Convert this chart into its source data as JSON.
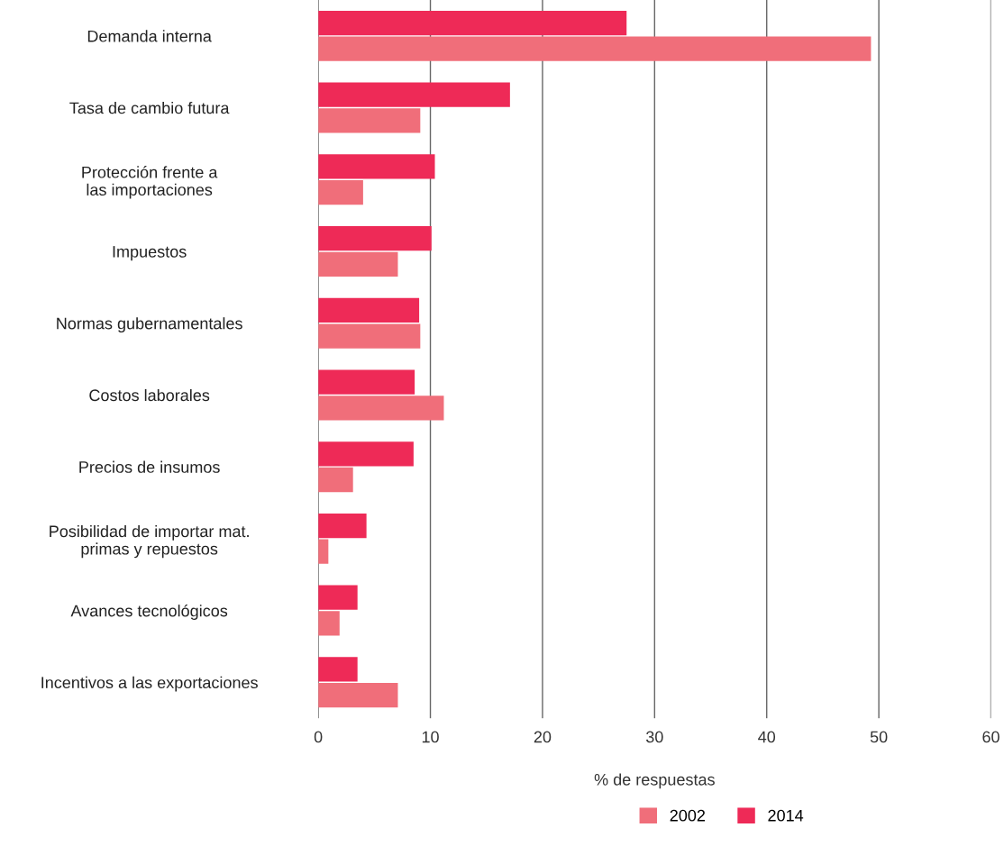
{
  "chart_data": {
    "type": "bar",
    "orientation": "horizontal",
    "xlabel": "% de respuestas",
    "categories": [
      "Demanda interna",
      "Tasa de cambio futura",
      "Protección frente a\nlas importaciones",
      "Impuestos",
      "Normas gubernamentales",
      "Costos laborales",
      "Precios de insumos",
      "Posibilidad de importar mat.\nprimas y repuestos",
      "Avances tecnológicos",
      "Incentivos a las exportaciones"
    ],
    "series": [
      {
        "name": "2002",
        "color": "#f06e7a",
        "values": [
          49.3,
          9.1,
          4.0,
          7.1,
          9.1,
          11.2,
          3.1,
          0.9,
          1.9,
          7.1
        ]
      },
      {
        "name": "2014",
        "color": "#ee2a57",
        "values": [
          27.5,
          17.1,
          10.4,
          10.1,
          9.0,
          8.6,
          8.5,
          4.3,
          3.5,
          3.5
        ]
      }
    ],
    "xlim": [
      0,
      60
    ],
    "xticks": [
      0,
      10,
      20,
      30,
      40,
      50,
      60
    ],
    "grid": "x",
    "legend": "bottom"
  }
}
